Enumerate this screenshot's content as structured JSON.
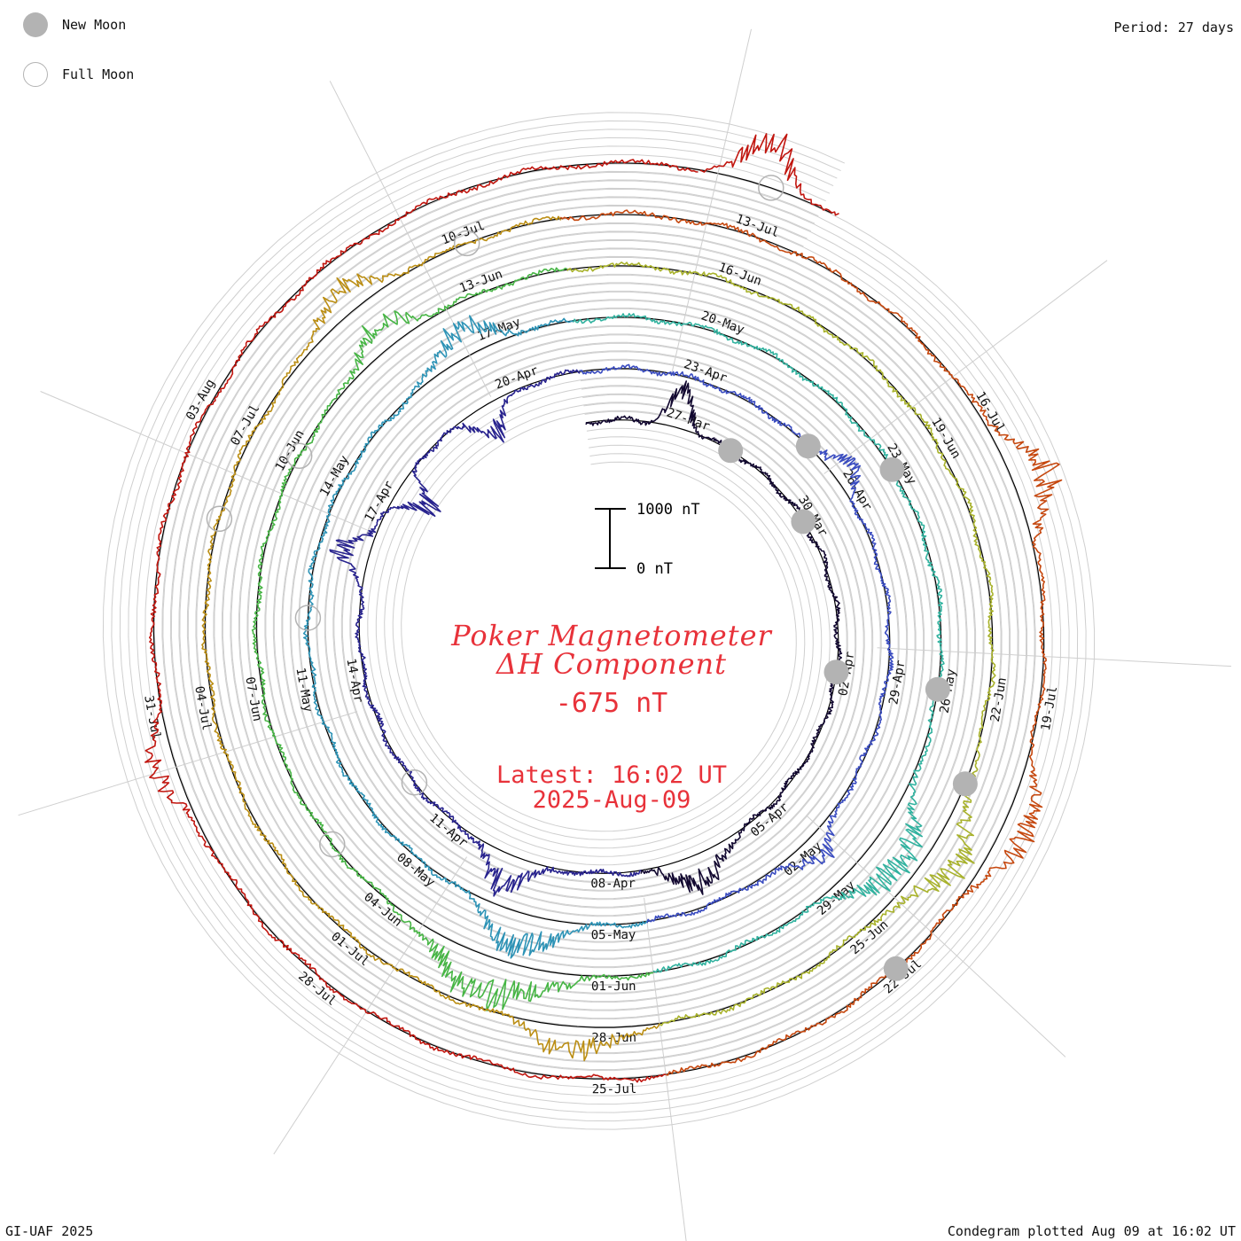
{
  "legend": {
    "new_moon_label": "New Moon",
    "full_moon_label": "Full Moon",
    "new_moon_color": "#b3b3b3",
    "full_moon_color": "#b3b3b3"
  },
  "period_label": "Period: 27 days",
  "footer": {
    "credit": "GI-UAF 2025",
    "plotted": "Condegram plotted Aug 09 at 16:02 UT"
  },
  "center": {
    "title_line1": "Poker Magnetometer",
    "title_line2": "ΔH Component",
    "value": "-675 nT",
    "latest_line1": "Latest: 16:02 UT",
    "latest_line2": "2025-Aug-09",
    "text_color": "#e8323a"
  },
  "scale_bar": {
    "top_label": "1000 nT",
    "bottom_label": "0 nT",
    "top_value": 1000,
    "bottom_value": 0
  },
  "chart_data": {
    "type": "line",
    "subtype": "condegram-spiral",
    "title": "Poker Magnetometer ΔH Component",
    "units": "nT",
    "period_days": 27,
    "start_date": "2025-03-25",
    "end_date": "2025-08-09",
    "latest_value_nT": -675,
    "rotation_colors": [
      "#120830",
      "#28238e",
      "#3a4cc0",
      "#2d93b6",
      "#31b29f",
      "#47b545",
      "#a8b22b",
      "#bb8e14",
      "#c6480f",
      "#c1160f"
    ],
    "date_labels": [
      {
        "label": "27-Mar",
        "day": 2
      },
      {
        "label": "30-Mar",
        "day": 5
      },
      {
        "label": "02-Apr",
        "day": 8
      },
      {
        "label": "05-Apr",
        "day": 11
      },
      {
        "label": "08-Apr",
        "day": 14
      },
      {
        "label": "11-Apr",
        "day": 17
      },
      {
        "label": "14-Apr",
        "day": 20
      },
      {
        "label": "17-Apr",
        "day": 23
      },
      {
        "label": "20-Apr",
        "day": 26
      },
      {
        "label": "23-Apr",
        "day": 29
      },
      {
        "label": "26-Apr",
        "day": 32
      },
      {
        "label": "29-Apr",
        "day": 35
      },
      {
        "label": "02-May",
        "day": 38
      },
      {
        "label": "05-May",
        "day": 41
      },
      {
        "label": "08-May",
        "day": 44
      },
      {
        "label": "11-May",
        "day": 47
      },
      {
        "label": "14-May",
        "day": 50
      },
      {
        "label": "17-May",
        "day": 53
      },
      {
        "label": "20-May",
        "day": 56
      },
      {
        "label": "23-May",
        "day": 59
      },
      {
        "label": "26-May",
        "day": 62
      },
      {
        "label": "29-May",
        "day": 65
      },
      {
        "label": "01-Jun",
        "day": 68
      },
      {
        "label": "04-Jun",
        "day": 71
      },
      {
        "label": "07-Jun",
        "day": 74
      },
      {
        "label": "10-Jun",
        "day": 77
      },
      {
        "label": "13-Jun",
        "day": 80
      },
      {
        "label": "16-Jun",
        "day": 83
      },
      {
        "label": "19-Jun",
        "day": 86
      },
      {
        "label": "22-Jun",
        "day": 89
      },
      {
        "label": "25-Jun",
        "day": 92
      },
      {
        "label": "28-Jun",
        "day": 95
      },
      {
        "label": "01-Jul",
        "day": 98
      },
      {
        "label": "04-Jul",
        "day": 101
      },
      {
        "label": "07-Jul",
        "day": 104
      },
      {
        "label": "10-Jul",
        "day": 107
      },
      {
        "label": "13-Jul",
        "day": 110
      },
      {
        "label": "16-Jul",
        "day": 113
      },
      {
        "label": "19-Jul",
        "day": 116
      },
      {
        "label": "22-Jul",
        "day": 119
      },
      {
        "label": "25-Jul",
        "day": 122
      },
      {
        "label": "28-Jul",
        "day": 125
      },
      {
        "label": "31-Jul",
        "day": 128
      },
      {
        "label": "03-Aug",
        "day": 131
      }
    ],
    "new_moon_days": [
      3,
      5,
      8,
      31,
      59,
      62,
      90,
      119
    ],
    "full_moon_days": [
      18,
      48,
      72,
      77,
      103,
      107,
      137
    ],
    "storms": [
      {
        "day": 1.8,
        "amp_nT": -550,
        "width_days": 0.3
      },
      {
        "day": 12.5,
        "amp_nT": -450,
        "width_days": 0.6
      },
      {
        "day": 15.8,
        "amp_nT": -500,
        "width_days": 0.5
      },
      {
        "day": 22.1,
        "amp_nT": -500,
        "width_days": 0.3
      },
      {
        "day": 23.4,
        "amp_nT": 600,
        "width_days": 0.25
      },
      {
        "day": 25.3,
        "amp_nT": 450,
        "width_days": 0.4
      },
      {
        "day": 31.6,
        "amp_nT": -300,
        "width_days": 0.4
      },
      {
        "day": 37.8,
        "amp_nT": -350,
        "width_days": 0.5
      },
      {
        "day": 42.3,
        "amp_nT": -550,
        "width_days": 0.6
      },
      {
        "day": 52.5,
        "amp_nT": -450,
        "width_days": 0.5
      },
      {
        "day": 64.2,
        "amp_nT": -600,
        "width_days": 0.7
      },
      {
        "day": 69.5,
        "amp_nT": -650,
        "width_days": 0.8
      },
      {
        "day": 78.7,
        "amp_nT": -400,
        "width_days": 0.5
      },
      {
        "day": 90.8,
        "amp_nT": -500,
        "width_days": 0.6
      },
      {
        "day": 95.4,
        "amp_nT": -450,
        "width_days": 0.5
      },
      {
        "day": 105.6,
        "amp_nT": -400,
        "width_days": 0.5
      },
      {
        "day": 113.7,
        "amp_nT": -550,
        "width_days": 0.5
      },
      {
        "day": 117.2,
        "amp_nT": -450,
        "width_days": 0.5
      },
      {
        "day": 127.5,
        "amp_nT": -350,
        "width_days": 0.4
      },
      {
        "day": 136.9,
        "amp_nT": -675,
        "width_days": 0.3
      }
    ]
  }
}
